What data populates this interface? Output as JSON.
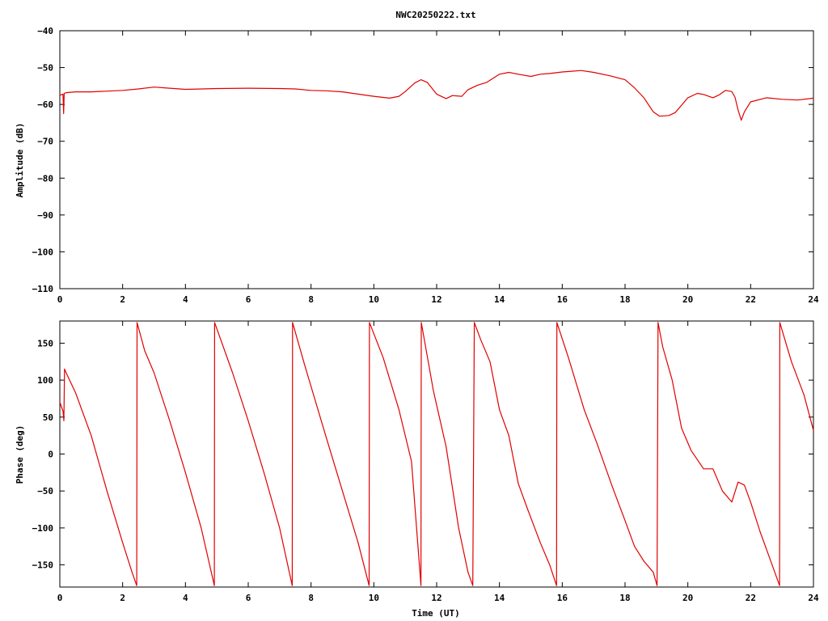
{
  "title": "NWC20250222.txt",
  "chart_data": [
    {
      "type": "line",
      "title": "NWC20250222.txt",
      "xlabel": "",
      "ylabel": "Amplitude (dB)",
      "xlim": [
        0,
        24
      ],
      "ylim": [
        -110,
        -40
      ],
      "xticks": [
        0,
        2,
        4,
        6,
        8,
        10,
        12,
        14,
        16,
        18,
        20,
        22,
        24
      ],
      "yticks": [
        -40,
        -50,
        -60,
        -70,
        -80,
        -90,
        -100,
        -110
      ],
      "ytick_labels": [
        "−40",
        "−50",
        "−60",
        "−70",
        "−80",
        "−90",
        "−100",
        "−110"
      ],
      "line_color": "#e00000",
      "series": [
        {
          "x": [
            0,
            0.1,
            0.12,
            0.14,
            0.2,
            0.5,
            1,
            2,
            2.5,
            3,
            3.5,
            4,
            5,
            6,
            7,
            7.5,
            8,
            8.5,
            9,
            9.5,
            10,
            10.5,
            10.8,
            11,
            11.3,
            11.5,
            11.7,
            12,
            12.3,
            12.5,
            12.8,
            13,
            13.3,
            13.6,
            14,
            14.3,
            14.6,
            15,
            15.3,
            15.6,
            16,
            16.3,
            16.6,
            17,
            17.5,
            18,
            18.3,
            18.6,
            18.9,
            19.1,
            19.4,
            19.6,
            19.8,
            20,
            20.3,
            20.5,
            20.8,
            21,
            21.2,
            21.4,
            21.5,
            21.6,
            21.7,
            21.8,
            22,
            22.5,
            23,
            23.5,
            24
          ],
          "y": [
            -57.5,
            -57.2,
            -62.5,
            -57,
            -56.8,
            -56.6,
            -56.6,
            -56.2,
            -55.8,
            -55.3,
            -55.6,
            -55.9,
            -55.7,
            -55.6,
            -55.7,
            -55.8,
            -56.2,
            -56.3,
            -56.6,
            -57.2,
            -57.8,
            -58.3,
            -57.8,
            -56.5,
            -54.2,
            -53.3,
            -54,
            -57.2,
            -58.4,
            -57.6,
            -57.8,
            -56,
            -54.8,
            -54,
            -51.8,
            -51.3,
            -51.8,
            -52.4,
            -51.8,
            -51.6,
            -51.2,
            -51,
            -50.8,
            -51.3,
            -52.2,
            -53.3,
            -55.5,
            -58.2,
            -62,
            -63.2,
            -63,
            -62.2,
            -60.2,
            -58.2,
            -57,
            -57.3,
            -58.2,
            -57.4,
            -56.2,
            -56.5,
            -58,
            -61.5,
            -64.3,
            -62,
            -59.3,
            -58.2,
            -58.6,
            -58.8,
            -58.3
          ]
        }
      ]
    },
    {
      "type": "line",
      "title": "",
      "xlabel": "Time (UT)",
      "ylabel": "Phase (deg)",
      "xlim": [
        0,
        24
      ],
      "ylim": [
        -180,
        180
      ],
      "xticks": [
        0,
        2,
        4,
        6,
        8,
        10,
        12,
        14,
        16,
        18,
        20,
        22,
        24
      ],
      "yticks": [
        150,
        100,
        50,
        0,
        -50,
        -100,
        -150
      ],
      "ytick_labels": [
        "150",
        "100",
        "50",
        "0",
        "−50",
        "−100",
        "−150"
      ],
      "line_color": "#e00000",
      "series": [
        {
          "x": [
            0,
            0.1,
            0.13,
            0.15,
            0.2,
            0.5,
            1,
            1.5,
            2,
            2.3,
            2.45,
            2.46,
            2.7,
            3,
            3.5,
            4,
            4.5,
            4.92,
            4.93,
            5.5,
            6,
            6.5,
            7,
            7.4,
            7.41,
            7.8,
            8.5,
            9,
            9.5,
            9.85,
            9.86,
            10.3,
            10.8,
            11.2,
            11.5,
            11.51,
            11.9,
            12.3,
            12.7,
            13,
            13.15,
            13.2,
            13.4,
            13.7,
            14,
            14.3,
            14.6,
            14.9,
            15.3,
            15.6,
            15.82,
            15.83,
            16.2,
            16.7,
            17.1,
            17.6,
            18,
            18.3,
            18.6,
            18.9,
            19.02,
            19.05,
            19.2,
            19.5,
            19.8,
            20.1,
            20.5,
            20.8,
            21.1,
            21.4,
            21.6,
            21.8,
            22,
            22.3,
            22.6,
            22.92,
            22.93,
            23.3,
            23.7,
            24
          ],
          "y": [
            70,
            58,
            45,
            115,
            110,
            83,
            25,
            -50,
            -120,
            -160,
            -178,
            178,
            140,
            110,
            45,
            -25,
            -100,
            -178,
            178,
            110,
            45,
            -25,
            -100,
            -178,
            178,
            120,
            20,
            -50,
            -120,
            -178,
            178,
            130,
            60,
            -10,
            -178,
            178,
            85,
            10,
            -100,
            -160,
            -178,
            178,
            155,
            125,
            60,
            25,
            -40,
            -75,
            -120,
            -150,
            -178,
            178,
            130,
            60,
            15,
            -45,
            -90,
            -125,
            -145,
            -160,
            -178,
            178,
            145,
            100,
            35,
            5,
            -20,
            -20,
            -50,
            -65,
            -38,
            -42,
            -65,
            -105,
            -140,
            -178,
            178,
            125,
            80,
            32
          ]
        }
      ]
    }
  ]
}
